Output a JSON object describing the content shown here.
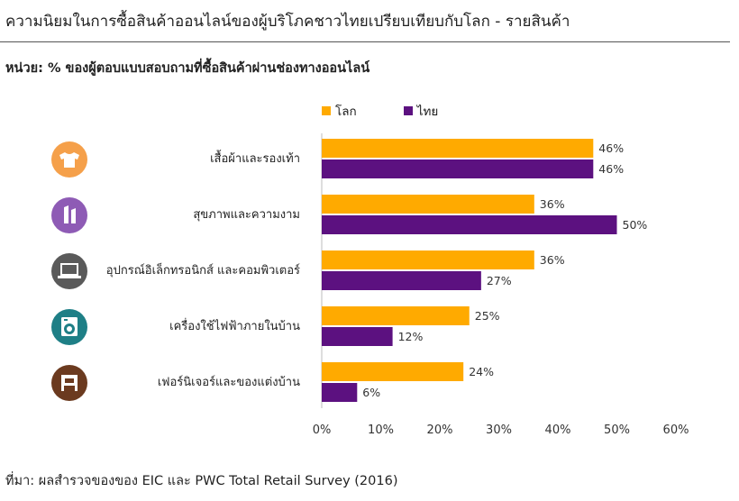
{
  "title": "ความนิยมในการซื้อสินค้าออนไลน์ของผู้บริโภคชาวไทยเปรียบเทียบกับโลก - รายสินค้า",
  "subtitle": "หน่วย: % ของผู้ตอบแบบสอบถามที่ซื้อสินค้าผ่านช่องทางออนไลน์",
  "source": "ที่มา: ผลสำรวจของของ EIC และ PWC Total Retail Survey (2016)",
  "colors": {
    "world": "#FFAA00",
    "thai": "#5C1180"
  },
  "chart_data": {
    "type": "bar",
    "orientation": "horizontal",
    "categories": [
      "เสื้อผ้าและรองเท้า",
      "สุขภาพและความงาม",
      "อุปกรณ์อิเล็กทรอนิกส์ และคอมพิวเตอร์",
      "เครื่องใช้ไฟฟ้าภายในบ้าน",
      "เฟอร์นิเจอร์และของแต่งบ้าน"
    ],
    "series": [
      {
        "name": "โลก",
        "values": [
          46,
          36,
          36,
          25,
          24
        ]
      },
      {
        "name": "ไทย",
        "values": [
          46,
          50,
          27,
          12,
          6
        ]
      }
    ],
    "xlim": [
      0,
      60
    ],
    "ticks": [
      "0%",
      "10%",
      "20%",
      "30%",
      "40%",
      "50%",
      "60%"
    ],
    "value_suffix": "%",
    "legend_position": "top",
    "grid": false
  },
  "icons": [
    {
      "name": "tshirt-icon",
      "color": "#F5A04A"
    },
    {
      "name": "lipstick-icon",
      "color": "#8E5BB5"
    },
    {
      "name": "laptop-icon",
      "color": "#5A5A5A"
    },
    {
      "name": "washing-machine-icon",
      "color": "#1E7F86"
    },
    {
      "name": "chair-icon",
      "color": "#6B3A1F"
    }
  ]
}
